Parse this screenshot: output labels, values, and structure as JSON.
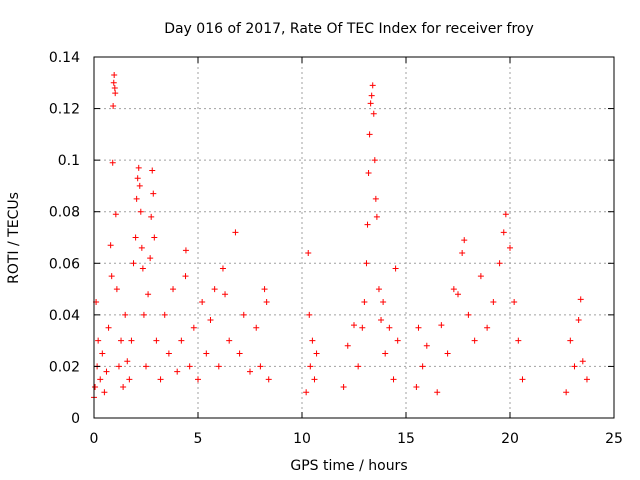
{
  "chart_data": {
    "type": "scatter",
    "title": "Day 016 of 2017, Rate Of TEC Index for receiver froy",
    "xlabel": "GPS time / hours",
    "ylabel": "ROTI / TECUs",
    "xlim": [
      0,
      25
    ],
    "ylim": [
      0,
      0.14
    ],
    "xticks": [
      0,
      5,
      10,
      15,
      20,
      25
    ],
    "xtick_labels": [
      "0",
      "5",
      "10",
      "15",
      "20",
      "25"
    ],
    "yticks": [
      0,
      0.02,
      0.04,
      0.06,
      0.08,
      0.1,
      0.12,
      0.14
    ],
    "ytick_labels": [
      "0",
      "0.02",
      "0.04",
      "0.06",
      "0.08",
      "0.1",
      "0.12",
      "0.14"
    ],
    "grid": true,
    "marker": "+",
    "color": "#ff0000",
    "series": [
      {
        "points": [
          [
            0.0,
            0.008
          ],
          [
            0.05,
            0.012
          ],
          [
            0.1,
            0.045
          ],
          [
            0.15,
            0.02
          ],
          [
            0.2,
            0.03
          ],
          [
            0.3,
            0.015
          ],
          [
            0.4,
            0.025
          ],
          [
            0.5,
            0.01
          ],
          [
            0.6,
            0.018
          ],
          [
            0.7,
            0.035
          ],
          [
            0.8,
            0.067
          ],
          [
            0.85,
            0.055
          ],
          [
            0.9,
            0.099
          ],
          [
            0.92,
            0.121
          ],
          [
            0.95,
            0.13
          ],
          [
            0.97,
            0.133
          ],
          [
            1.0,
            0.128
          ],
          [
            1.02,
            0.126
          ],
          [
            1.05,
            0.079
          ],
          [
            1.1,
            0.05
          ],
          [
            1.2,
            0.02
          ],
          [
            1.3,
            0.03
          ],
          [
            1.4,
            0.012
          ],
          [
            1.5,
            0.04
          ],
          [
            1.6,
            0.022
          ],
          [
            1.7,
            0.015
          ],
          [
            1.8,
            0.03
          ],
          [
            1.9,
            0.06
          ],
          [
            2.0,
            0.07
          ],
          [
            2.05,
            0.085
          ],
          [
            2.1,
            0.093
          ],
          [
            2.15,
            0.097
          ],
          [
            2.2,
            0.09
          ],
          [
            2.25,
            0.08
          ],
          [
            2.3,
            0.066
          ],
          [
            2.35,
            0.058
          ],
          [
            2.4,
            0.04
          ],
          [
            2.5,
            0.02
          ],
          [
            2.6,
            0.048
          ],
          [
            2.7,
            0.062
          ],
          [
            2.75,
            0.078
          ],
          [
            2.8,
            0.096
          ],
          [
            2.85,
            0.087
          ],
          [
            2.9,
            0.07
          ],
          [
            3.0,
            0.03
          ],
          [
            3.2,
            0.015
          ],
          [
            3.4,
            0.04
          ],
          [
            3.6,
            0.025
          ],
          [
            3.8,
            0.05
          ],
          [
            4.0,
            0.018
          ],
          [
            4.2,
            0.03
          ],
          [
            4.4,
            0.055
          ],
          [
            4.42,
            0.065
          ],
          [
            4.6,
            0.02
          ],
          [
            4.8,
            0.035
          ],
          [
            5.0,
            0.015
          ],
          [
            5.2,
            0.045
          ],
          [
            5.4,
            0.025
          ],
          [
            5.6,
            0.038
          ],
          [
            5.8,
            0.05
          ],
          [
            6.0,
            0.02
          ],
          [
            6.2,
            0.058
          ],
          [
            6.3,
            0.048
          ],
          [
            6.5,
            0.03
          ],
          [
            6.8,
            0.072
          ],
          [
            7.0,
            0.025
          ],
          [
            7.2,
            0.04
          ],
          [
            7.5,
            0.018
          ],
          [
            7.8,
            0.035
          ],
          [
            8.0,
            0.02
          ],
          [
            8.2,
            0.05
          ],
          [
            8.3,
            0.045
          ],
          [
            8.4,
            0.015
          ],
          [
            10.2,
            0.01
          ],
          [
            10.3,
            0.064
          ],
          [
            10.35,
            0.04
          ],
          [
            10.4,
            0.02
          ],
          [
            10.5,
            0.03
          ],
          [
            10.6,
            0.015
          ],
          [
            10.7,
            0.025
          ],
          [
            12.0,
            0.012
          ],
          [
            12.2,
            0.028
          ],
          [
            12.5,
            0.036
          ],
          [
            12.7,
            0.02
          ],
          [
            12.9,
            0.035
          ],
          [
            13.0,
            0.045
          ],
          [
            13.1,
            0.06
          ],
          [
            13.15,
            0.075
          ],
          [
            13.2,
            0.095
          ],
          [
            13.25,
            0.11
          ],
          [
            13.3,
            0.122
          ],
          [
            13.35,
            0.125
          ],
          [
            13.4,
            0.129
          ],
          [
            13.45,
            0.118
          ],
          [
            13.5,
            0.1
          ],
          [
            13.55,
            0.085
          ],
          [
            13.6,
            0.078
          ],
          [
            13.7,
            0.05
          ],
          [
            13.8,
            0.038
          ],
          [
            13.9,
            0.045
          ],
          [
            14.0,
            0.025
          ],
          [
            14.2,
            0.035
          ],
          [
            14.4,
            0.015
          ],
          [
            14.5,
            0.058
          ],
          [
            14.6,
            0.03
          ],
          [
            15.5,
            0.012
          ],
          [
            15.6,
            0.035
          ],
          [
            15.8,
            0.02
          ],
          [
            16.0,
            0.028
          ],
          [
            16.5,
            0.01
          ],
          [
            16.7,
            0.036
          ],
          [
            17.0,
            0.025
          ],
          [
            17.3,
            0.05
          ],
          [
            17.5,
            0.048
          ],
          [
            17.7,
            0.064
          ],
          [
            17.8,
            0.069
          ],
          [
            18.0,
            0.04
          ],
          [
            18.3,
            0.03
          ],
          [
            18.6,
            0.055
          ],
          [
            18.9,
            0.035
          ],
          [
            19.2,
            0.045
          ],
          [
            19.5,
            0.06
          ],
          [
            19.7,
            0.072
          ],
          [
            19.8,
            0.079
          ],
          [
            20.0,
            0.066
          ],
          [
            20.2,
            0.045
          ],
          [
            20.4,
            0.03
          ],
          [
            20.6,
            0.015
          ],
          [
            22.7,
            0.01
          ],
          [
            22.9,
            0.03
          ],
          [
            23.1,
            0.02
          ],
          [
            23.3,
            0.038
          ],
          [
            23.4,
            0.046
          ],
          [
            23.5,
            0.022
          ],
          [
            23.7,
            0.015
          ]
        ]
      }
    ]
  }
}
